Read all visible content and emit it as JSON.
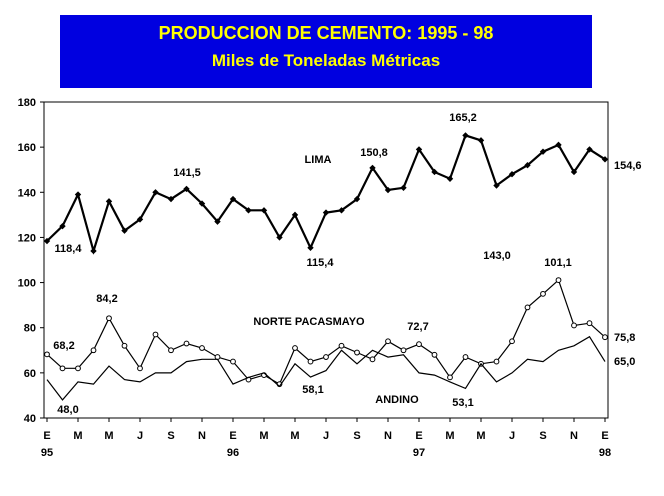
{
  "chart_data": {
    "type": "line",
    "title": "PRODUCCION DE CEMENTO: 1995 - 98",
    "subtitle": "Miles de Toneladas Métricas",
    "ylim": [
      40,
      180
    ],
    "yticks": [
      "40",
      "60",
      "80",
      "100",
      "120",
      "140",
      "160",
      "180"
    ],
    "xtick_labels": [
      "E",
      "M",
      "M",
      "J",
      "S",
      "N",
      "E",
      "M",
      "M",
      "J",
      "S",
      "N",
      "E",
      "M",
      "M",
      "J",
      "S",
      "N",
      "E"
    ],
    "year_labels": [
      "95",
      "96",
      "97",
      "98"
    ],
    "grid": false,
    "legend": "none",
    "series": [
      {
        "name": "LIMA",
        "color": "#000000",
        "marker": "filled-diamond",
        "values": [
          118.4,
          125,
          139,
          114,
          136,
          123,
          128,
          140,
          137,
          141.5,
          135,
          127,
          137,
          132,
          132,
          120,
          130,
          115.4,
          131,
          132,
          137,
          150.8,
          141,
          142,
          159,
          149,
          146,
          165.2,
          163,
          143.0,
          148,
          152,
          158,
          161,
          149,
          159,
          154.6
        ]
      },
      {
        "name": "NORTE PACASMAYO",
        "color": "#000000",
        "marker": "open-circle",
        "values": [
          68.2,
          62,
          62,
          70,
          84.2,
          72,
          62,
          77,
          70,
          73,
          71,
          67,
          65,
          57,
          59,
          55,
          71,
          65,
          67,
          72,
          69,
          66,
          74,
          70,
          72.7,
          68,
          58,
          67,
          64,
          65,
          74,
          89,
          95,
          101.1,
          81,
          82,
          75.8
        ]
      },
      {
        "name": "ANDINO",
        "color": "#000000",
        "marker": "none",
        "values": [
          57,
          48.0,
          56,
          55,
          63,
          57,
          56,
          60,
          60,
          65,
          66,
          66,
          55,
          58,
          60,
          54,
          64,
          58.1,
          61,
          70,
          64,
          70,
          67,
          68,
          60,
          59,
          56,
          53.1,
          64,
          56,
          60,
          66,
          65,
          70,
          72,
          76,
          65.0
        ]
      }
    ],
    "annotations": [
      "118,4",
      "141,5",
      "115,4",
      "150,8",
      "165,2",
      "143,0",
      "154,6",
      "68,2",
      "84,2",
      "72,7",
      "101,1",
      "75,8",
      "48,0",
      "58,1",
      "53,1",
      "65,0"
    ],
    "series_labels": [
      "LIMA",
      "NORTE PACASMAYO",
      "ANDINO"
    ]
  }
}
